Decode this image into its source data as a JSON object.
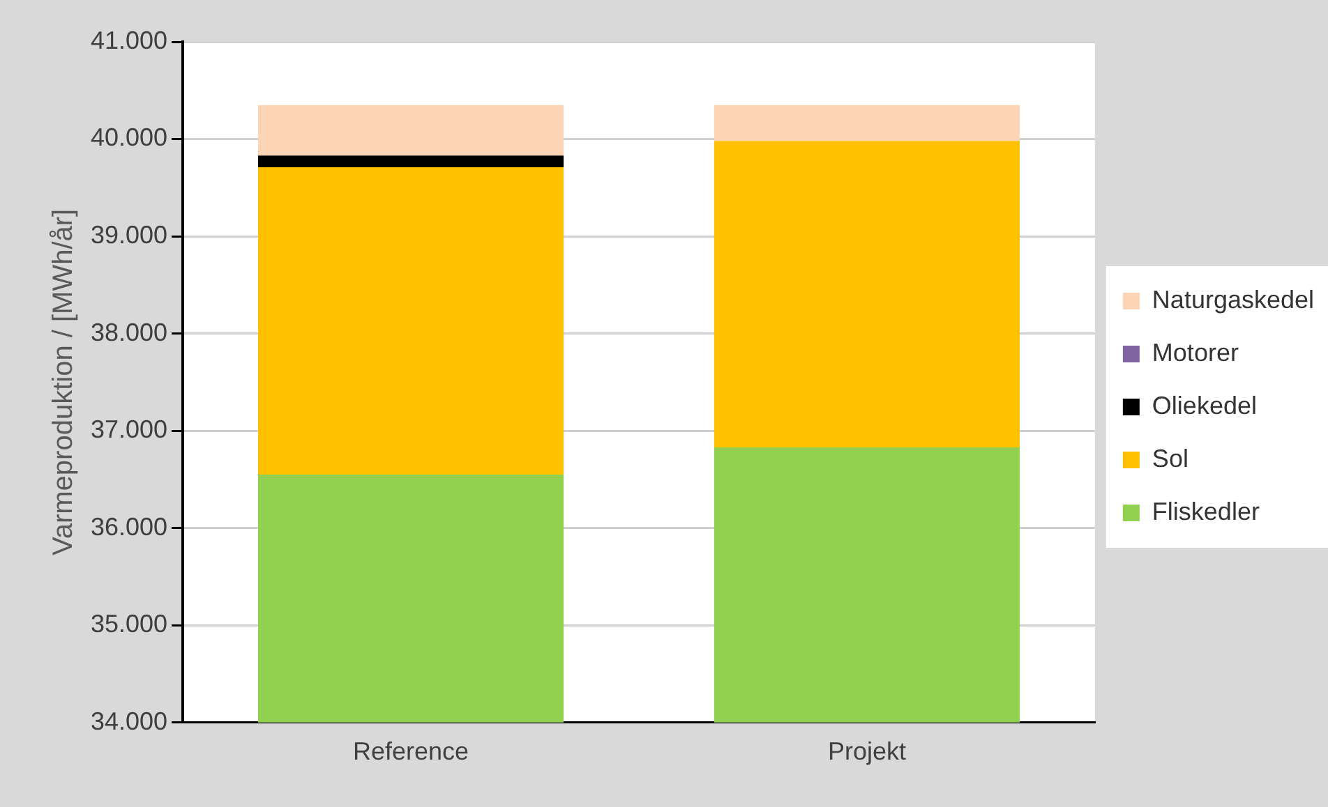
{
  "chart_data": {
    "type": "bar",
    "stacked": true,
    "ylabel": "Varmeproduktion / [MWh/år]",
    "categories": [
      "Reference",
      "Projekt"
    ],
    "series": [
      {
        "name": "Fliskedler",
        "color": "#92d050",
        "values": [
          36550,
          36830
        ]
      },
      {
        "name": "Sol",
        "color": "#ffc000",
        "base": [
          36550,
          36830
        ],
        "values": [
          3160,
          3150
        ]
      },
      {
        "name": "Oliekedel",
        "color": "#000000",
        "base": [
          39710,
          null
        ],
        "values": [
          120,
          null
        ]
      },
      {
        "name": "Motorer",
        "color": "#8064a2",
        "base": [
          null,
          null
        ],
        "values": [
          null,
          null
        ]
      },
      {
        "name": "Naturgaskedel",
        "color": "#fbd5b5",
        "base": [
          39830,
          39980
        ],
        "values": [
          520,
          370
        ]
      }
    ],
    "ylim": [
      34000,
      41000
    ],
    "yticks": [
      {
        "value": 34000,
        "label": "34.000"
      },
      {
        "value": 35000,
        "label": "35.000"
      },
      {
        "value": 36000,
        "label": "36.000"
      },
      {
        "value": 37000,
        "label": "37.000"
      },
      {
        "value": 38000,
        "label": "38.000"
      },
      {
        "value": 39000,
        "label": "39.000"
      },
      {
        "value": 40000,
        "label": "40.000"
      },
      {
        "value": 41000,
        "label": "41.000"
      }
    ],
    "grid": "y",
    "legend": "right"
  }
}
